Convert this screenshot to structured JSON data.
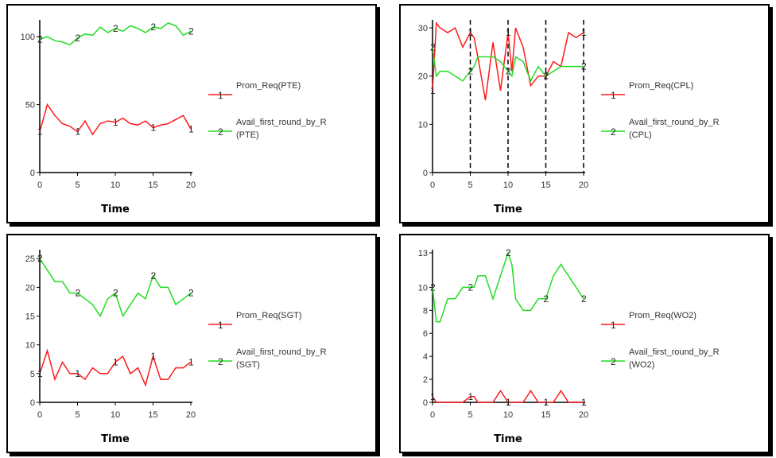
{
  "colors": {
    "series1": "#ff1a1a",
    "series2": "#22dd22",
    "axis": "#000000"
  },
  "chart_data": [
    {
      "type": "line",
      "xlabel": "Time",
      "xlim": [
        0,
        20
      ],
      "ylim": [
        0,
        110
      ],
      "xticks": [
        0,
        5,
        10,
        15,
        20
      ],
      "yticks": [
        0,
        50,
        100
      ],
      "legend": "right",
      "x": [
        0,
        1,
        2,
        3,
        4,
        5,
        6,
        7,
        8,
        9,
        10,
        11,
        12,
        13,
        14,
        15,
        16,
        17,
        18,
        19,
        20
      ],
      "series": [
        {
          "name": "Prom_Req(PTE)",
          "marker": "1",
          "color": "#ff1a1a",
          "values": [
            30,
            50,
            42,
            36,
            34,
            30,
            38,
            28,
            36,
            38,
            37,
            40,
            36,
            35,
            38,
            33,
            35,
            36,
            39,
            42,
            32
          ]
        },
        {
          "name": "Avail_first_round_by_R (PTE)",
          "legend_lines": [
            "Avail_first_round_by_R",
            "(PTE)"
          ],
          "marker": "2",
          "color": "#22dd22",
          "values": [
            98,
            100,
            97,
            96,
            94,
            99,
            102,
            101,
            107,
            103,
            106,
            104,
            108,
            106,
            103,
            107,
            106,
            110,
            108,
            101,
            104
          ]
        }
      ],
      "marker_points": [
        {
          "series": 0,
          "x": [
            0,
            5,
            10,
            15,
            20
          ]
        },
        {
          "series": 1,
          "x": [
            0,
            5,
            10,
            15,
            20
          ]
        }
      ]
    },
    {
      "type": "line",
      "xlabel": "Time",
      "xlim": [
        0,
        20
      ],
      "ylim": [
        0,
        31
      ],
      "xticks": [
        0,
        5,
        10,
        15,
        20
      ],
      "yticks": [
        0,
        10,
        20,
        30
      ],
      "dashed_vlines": [
        5,
        10,
        15,
        20
      ],
      "legend": "right",
      "x": [
        0,
        0.5,
        1,
        2,
        3,
        4,
        5,
        5.5,
        6,
        7,
        8,
        9,
        10,
        10.5,
        11,
        12,
        13,
        14,
        15,
        16,
        17,
        18,
        19,
        20
      ],
      "series": [
        {
          "name": "Prom_Req(CPL)",
          "marker": "1",
          "color": "#ff1a1a",
          "values": [
            17,
            31,
            30,
            29,
            30,
            26,
            29,
            28,
            24,
            15,
            27,
            17,
            29,
            21,
            30,
            26,
            18,
            20,
            20,
            23,
            22,
            29,
            28,
            29
          ]
        },
        {
          "name": "Avail_first_round_by_R (CPL)",
          "legend_lines": [
            "Avail_first_round_by_R",
            "(CPL)"
          ],
          "marker": "2",
          "color": "#22dd22",
          "values": [
            26,
            20,
            21,
            21,
            20,
            19,
            21,
            22,
            24,
            24,
            24,
            23,
            21,
            20,
            24,
            23,
            19,
            22,
            20,
            21,
            22,
            22,
            22,
            22
          ]
        }
      ],
      "marker_points": [
        {
          "series": 0,
          "x": [
            0,
            5,
            10,
            15,
            20
          ]
        },
        {
          "series": 1,
          "x": [
            0,
            5,
            10,
            15,
            20
          ]
        }
      ]
    },
    {
      "type": "line",
      "xlabel": "Time",
      "xlim": [
        0,
        20
      ],
      "ylim": [
        0,
        26
      ],
      "xticks": [
        0,
        5,
        10,
        15,
        20
      ],
      "yticks": [
        0,
        5,
        10,
        15,
        20,
        25
      ],
      "legend": "right",
      "x": [
        0,
        1,
        2,
        3,
        4,
        5,
        6,
        7,
        8,
        9,
        10,
        11,
        12,
        13,
        14,
        15,
        16,
        17,
        18,
        19,
        20
      ],
      "series": [
        {
          "name": "Prom_Req(SGT)",
          "marker": "1",
          "color": "#ff1a1a",
          "values": [
            5,
            9,
            4,
            7,
            5,
            5,
            4,
            6,
            5,
            5,
            7,
            8,
            5,
            6,
            3,
            8,
            4,
            4,
            6,
            6,
            7
          ]
        },
        {
          "name": "Avail_first_round_by_R (SGT)",
          "legend_lines": [
            "Avail_first_round_by_R",
            "(SGT)"
          ],
          "marker": "2",
          "color": "#22dd22",
          "values": [
            25,
            23,
            21,
            21,
            19,
            19,
            18,
            17,
            15,
            18,
            19,
            15,
            17,
            19,
            18,
            22,
            20,
            20,
            17,
            18,
            19
          ]
        }
      ],
      "marker_points": [
        {
          "series": 0,
          "x": [
            0,
            5,
            10,
            15,
            20
          ]
        },
        {
          "series": 1,
          "x": [
            0,
            5,
            10,
            15,
            20
          ]
        }
      ]
    },
    {
      "type": "line",
      "xlabel": "Time",
      "xlim": [
        0,
        20
      ],
      "ylim": [
        0,
        13
      ],
      "xticks": [
        0,
        5,
        10,
        15,
        20
      ],
      "yticks": [
        0,
        2,
        4,
        6,
        8,
        10,
        13
      ],
      "legend": "right",
      "x": [
        0,
        0.5,
        1,
        2,
        3,
        4,
        5,
        5.5,
        6,
        7,
        8,
        9,
        10,
        10.5,
        11,
        12,
        13,
        14,
        15,
        16,
        17,
        18,
        19,
        20
      ],
      "series": [
        {
          "name": "Prom_Req(WO2)",
          "marker": "1",
          "color": "#ff1a1a",
          "values": [
            0.5,
            0,
            0,
            0,
            0,
            0,
            0.5,
            0.5,
            0,
            0,
            0,
            1,
            0,
            0,
            0,
            0,
            1,
            0,
            0,
            0,
            1,
            0,
            0,
            0
          ]
        },
        {
          "name": "Avail_first_round_by_R (WO2)",
          "legend_lines": [
            "Avail_first_round_by_R",
            "(WO2)"
          ],
          "marker": "2",
          "color": "#22dd22",
          "values": [
            10,
            7,
            7,
            9,
            9,
            10,
            10,
            10,
            11,
            11,
            9,
            11,
            13,
            12,
            9,
            8,
            8,
            9,
            9,
            11,
            12,
            11,
            10,
            9
          ]
        }
      ],
      "marker_points": [
        {
          "series": 0,
          "x": [
            0,
            5,
            10,
            15,
            20
          ]
        },
        {
          "series": 1,
          "x": [
            0,
            5,
            10,
            15,
            20
          ]
        }
      ]
    }
  ]
}
